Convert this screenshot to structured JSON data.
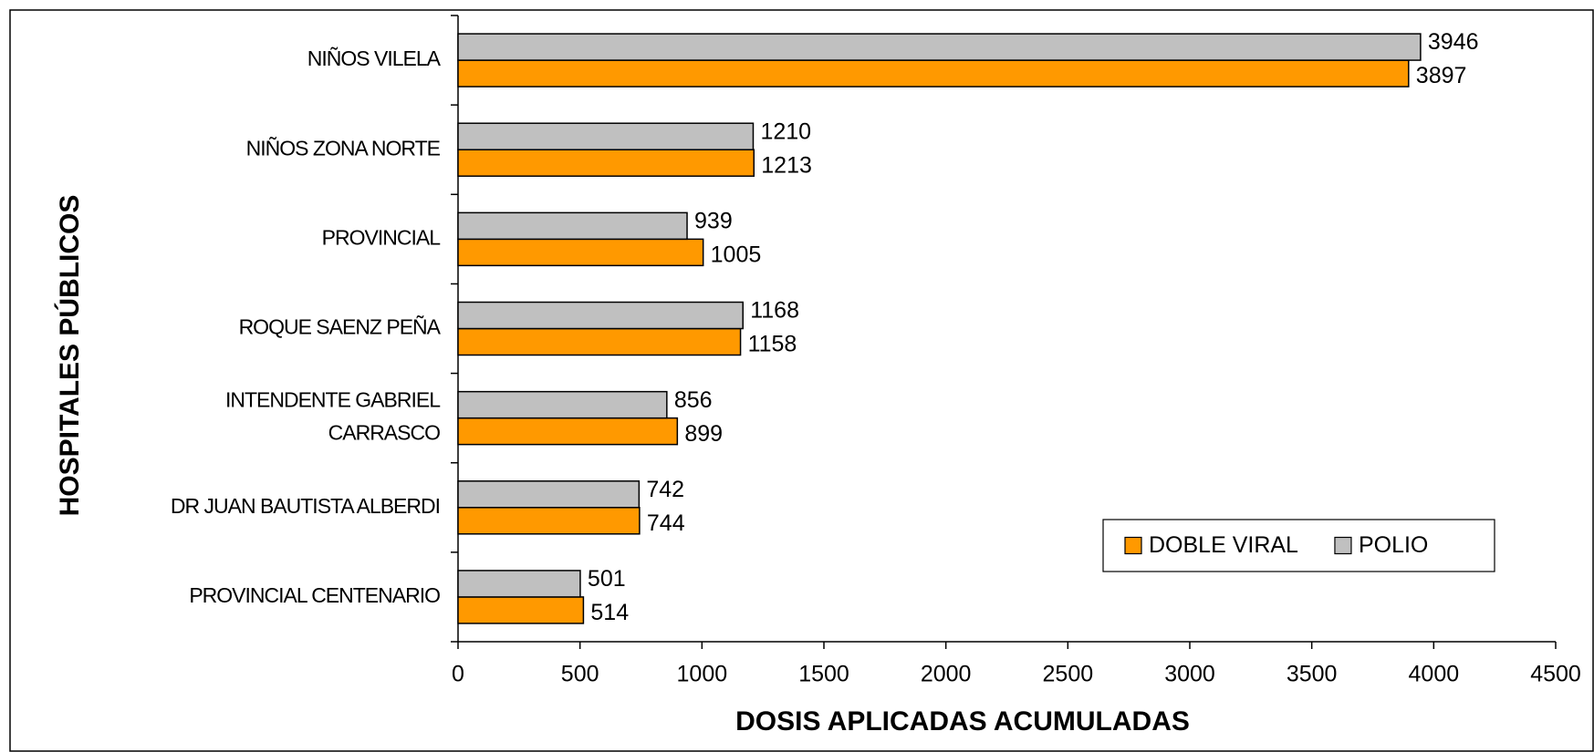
{
  "chart_data": {
    "type": "barh",
    "xlabel": "DOSIS APLICADAS ACUMULADAS",
    "ylabel": "HOSPITALES PÚBLICOS",
    "categories": [
      [
        "NIÑOS VILELA"
      ],
      [
        "NIÑOS ZONA NORTE"
      ],
      [
        "PROVINCIAL"
      ],
      [
        "ROQUE SAENZ PEÑA"
      ],
      [
        "INTENDENTE GABRIEL",
        "CARRASCO"
      ],
      [
        "DR JUAN BAUTISTA ALBERDI"
      ],
      [
        "PROVINCIAL CENTENARIO"
      ]
    ],
    "series": [
      {
        "name": "DOBLE VIRAL",
        "color": "#ff9900",
        "values": [
          3897,
          1213,
          1005,
          1158,
          899,
          744,
          514
        ]
      },
      {
        "name": "POLIO",
        "color": "#c0c0c0",
        "values": [
          3946,
          1210,
          939,
          1168,
          856,
          742,
          501
        ]
      }
    ],
    "xlim": [
      0,
      4500
    ],
    "xticks": [
      0,
      500,
      1000,
      1500,
      2000,
      2500,
      3000,
      3500,
      4000,
      4500
    ],
    "legend": "lower right"
  }
}
